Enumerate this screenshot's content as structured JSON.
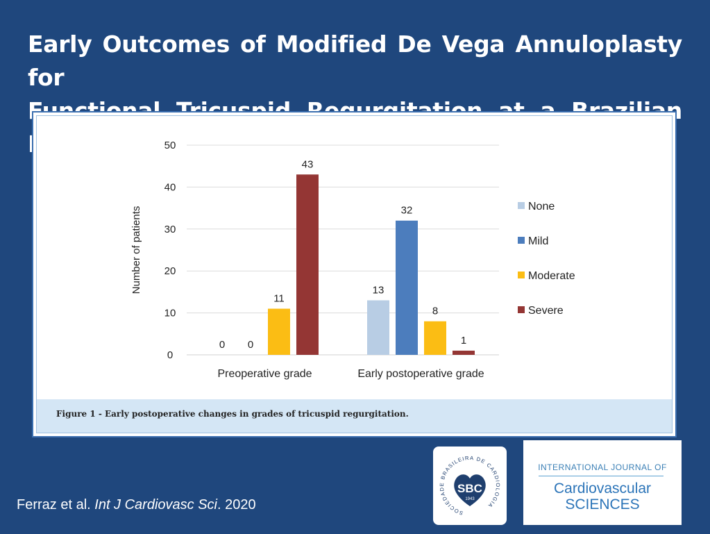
{
  "title_lines": [
    "Early Outcomes of Modified De Vega Annuloplasty for",
    "Functional Tricuspid Regurgitation at a Brazilian Hospital"
  ],
  "figure_caption": "Figure 1 - Early postoperative changes in grades of tricuspid regurgitation.",
  "citation": {
    "authors": "Ferraz et al.",
    "journal": "Int J Cardiovasc Sci",
    "year": ". 2020"
  },
  "logos": {
    "sbc": {
      "abbr": "SBC",
      "ring_text": "SOCIEDADE BRASILEIRA DE CARDIOLOGIA",
      "year": "1943"
    },
    "ijcs": {
      "top": "INTERNATIONAL JOURNAL OF",
      "line1": "Cardiovascular",
      "line2": "SCIENCES"
    }
  },
  "chart_data": {
    "type": "bar",
    "categories": [
      "Preoperative grade",
      "Early postoperative grade"
    ],
    "series": [
      {
        "name": "None",
        "values": [
          0,
          13
        ],
        "color": "#b8cde4"
      },
      {
        "name": "Mild",
        "values": [
          0,
          32
        ],
        "color": "#4c7dbd"
      },
      {
        "name": "Moderate",
        "values": [
          11,
          8
        ],
        "color": "#fbbd14"
      },
      {
        "name": "Severe",
        "values": [
          43,
          1
        ],
        "color": "#943634"
      }
    ],
    "ylabel": "Number of patients",
    "ylim": [
      0,
      50
    ],
    "yticks": [
      0,
      10,
      20,
      30,
      40,
      50
    ],
    "grid": true,
    "legend": "right"
  }
}
